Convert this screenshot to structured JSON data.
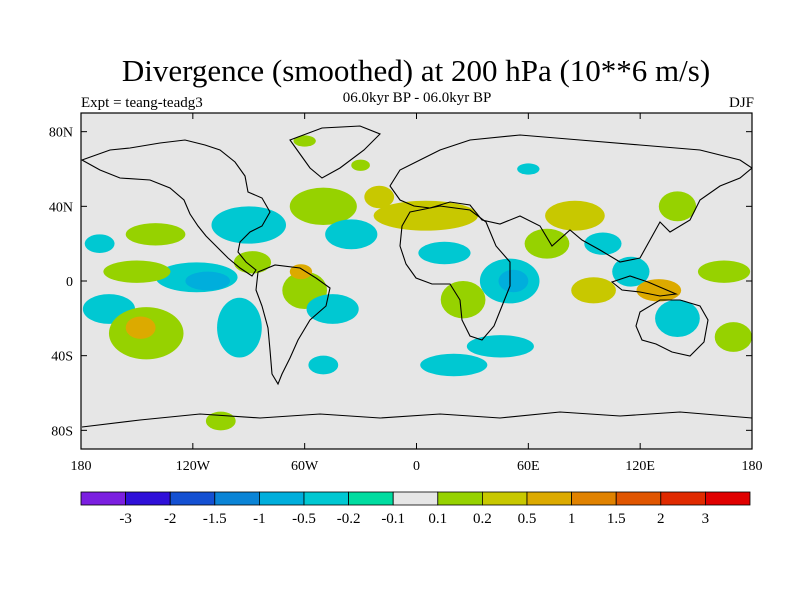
{
  "title": "Divergence (smoothed) at 200 hPa (10**6 m/s)",
  "subtitle_left": "Expt = teang-teadg3",
  "subtitle_center": "06.0kyr BP - 06.0kyr BP",
  "subtitle_right": "DJF",
  "colors": {
    "background_land_ocean": "#e6e6e6",
    "coastline": "#000000"
  },
  "chart_data": {
    "type": "heatmap",
    "variable": "200 hPa divergence (smoothed)",
    "units": "10**6 m/s",
    "season": "DJF",
    "xlim": [
      -180,
      180
    ],
    "ylim": [
      -90,
      90
    ],
    "x_ticks": [
      {
        "value": -180,
        "label": "180"
      },
      {
        "value": -120,
        "label": "120W"
      },
      {
        "value": -60,
        "label": "60W"
      },
      {
        "value": 0,
        "label": "0"
      },
      {
        "value": 60,
        "label": "60E"
      },
      {
        "value": 120,
        "label": "120E"
      },
      {
        "value": 180,
        "label": "180"
      }
    ],
    "y_ticks": [
      {
        "value": 80,
        "label": "80N"
      },
      {
        "value": 40,
        "label": "40N"
      },
      {
        "value": 0,
        "label": "0"
      },
      {
        "value": -40,
        "label": "40S"
      },
      {
        "value": -80,
        "label": "80S"
      }
    ],
    "levels": [
      "-3",
      "-2",
      "-1.5",
      "-1",
      "-0.5",
      "-0.2",
      "-0.1",
      "0.1",
      "0.2",
      "0.5",
      "1",
      "1.5",
      "2",
      "3"
    ],
    "level_colors": [
      "#7b1fe0",
      "#2f10d8",
      "#1450d2",
      "#0a84d6",
      "#00aedc",
      "#00c8d2",
      "#00dca0",
      "#e6e6e6",
      "#96d200",
      "#c8c800",
      "#dcaa00",
      "#e08200",
      "#e05500",
      "#e02a00",
      "#e00000"
    ],
    "regions": [
      {
        "lon": -170,
        "lat": 20,
        "rx": 8,
        "ry": 5,
        "color": "#00c8d2"
      },
      {
        "lon": -140,
        "lat": 25,
        "rx": 16,
        "ry": 6,
        "color": "#96d200"
      },
      {
        "lon": -118,
        "lat": 2,
        "rx": 22,
        "ry": 8,
        "color": "#00c8d2"
      },
      {
        "lon": -112,
        "lat": 0,
        "rx": 12,
        "ry": 5,
        "color": "#00aedc"
      },
      {
        "lon": -150,
        "lat": 5,
        "rx": 18,
        "ry": 6,
        "color": "#96d200"
      },
      {
        "lon": -165,
        "lat": -15,
        "rx": 14,
        "ry": 8,
        "color": "#00c8d2"
      },
      {
        "lon": -145,
        "lat": -28,
        "rx": 20,
        "ry": 14,
        "color": "#96d200"
      },
      {
        "lon": -148,
        "lat": -25,
        "rx": 8,
        "ry": 6,
        "color": "#dcaa00"
      },
      {
        "lon": -95,
        "lat": -25,
        "rx": 12,
        "ry": 16,
        "color": "#00c8d2"
      },
      {
        "lon": -90,
        "lat": 30,
        "rx": 20,
        "ry": 10,
        "color": "#00c8d2"
      },
      {
        "lon": -88,
        "lat": 10,
        "rx": 10,
        "ry": 6,
        "color": "#96d200"
      },
      {
        "lon": -60,
        "lat": -5,
        "rx": 12,
        "ry": 10,
        "color": "#96d200"
      },
      {
        "lon": -62,
        "lat": 5,
        "rx": 6,
        "ry": 4,
        "color": "#dcaa00"
      },
      {
        "lon": -45,
        "lat": -15,
        "rx": 14,
        "ry": 8,
        "color": "#00c8d2"
      },
      {
        "lon": -50,
        "lat": 40,
        "rx": 18,
        "ry": 10,
        "color": "#96d200"
      },
      {
        "lon": -35,
        "lat": 25,
        "rx": 14,
        "ry": 8,
        "color": "#00c8d2"
      },
      {
        "lon": -30,
        "lat": 62,
        "rx": 5,
        "ry": 3,
        "color": "#96d200"
      },
      {
        "lon": 5,
        "lat": 35,
        "rx": 28,
        "ry": 8,
        "color": "#c8c800"
      },
      {
        "lon": -20,
        "lat": 45,
        "rx": 8,
        "ry": 6,
        "color": "#c8c800"
      },
      {
        "lon": 15,
        "lat": 15,
        "rx": 14,
        "ry": 6,
        "color": "#00c8d2"
      },
      {
        "lon": 25,
        "lat": -10,
        "rx": 12,
        "ry": 10,
        "color": "#96d200"
      },
      {
        "lon": 50,
        "lat": 0,
        "rx": 16,
        "ry": 12,
        "color": "#00c8d2"
      },
      {
        "lon": 52,
        "lat": 0,
        "rx": 8,
        "ry": 6,
        "color": "#00aedc"
      },
      {
        "lon": 45,
        "lat": -35,
        "rx": 18,
        "ry": 6,
        "color": "#00c8d2"
      },
      {
        "lon": 70,
        "lat": 20,
        "rx": 12,
        "ry": 8,
        "color": "#96d200"
      },
      {
        "lon": 85,
        "lat": 35,
        "rx": 16,
        "ry": 8,
        "color": "#c8c800"
      },
      {
        "lon": 100,
        "lat": 20,
        "rx": 10,
        "ry": 6,
        "color": "#00c8d2"
      },
      {
        "lon": 115,
        "lat": 5,
        "rx": 10,
        "ry": 8,
        "color": "#00c8d2"
      },
      {
        "lon": 95,
        "lat": -5,
        "rx": 12,
        "ry": 7,
        "color": "#c8c800"
      },
      {
        "lon": 130,
        "lat": -5,
        "rx": 12,
        "ry": 6,
        "color": "#dcaa00"
      },
      {
        "lon": 140,
        "lat": -20,
        "rx": 12,
        "ry": 10,
        "color": "#00c8d2"
      },
      {
        "lon": 140,
        "lat": 40,
        "rx": 10,
        "ry": 8,
        "color": "#96d200"
      },
      {
        "lon": 165,
        "lat": 5,
        "rx": 14,
        "ry": 6,
        "color": "#96d200"
      },
      {
        "lon": 170,
        "lat": -30,
        "rx": 10,
        "ry": 8,
        "color": "#96d200"
      },
      {
        "lon": -50,
        "lat": -45,
        "rx": 8,
        "ry": 5,
        "color": "#00c8d2"
      },
      {
        "lon": 20,
        "lat": -45,
        "rx": 18,
        "ry": 6,
        "color": "#00c8d2"
      },
      {
        "lon": -105,
        "lat": -75,
        "rx": 8,
        "ry": 5,
        "color": "#96d200"
      },
      {
        "lon": -60,
        "lat": 75,
        "rx": 6,
        "ry": 3,
        "color": "#96d200"
      },
      {
        "lon": 60,
        "lat": 60,
        "rx": 6,
        "ry": 3,
        "color": "#00c8d2"
      }
    ]
  }
}
